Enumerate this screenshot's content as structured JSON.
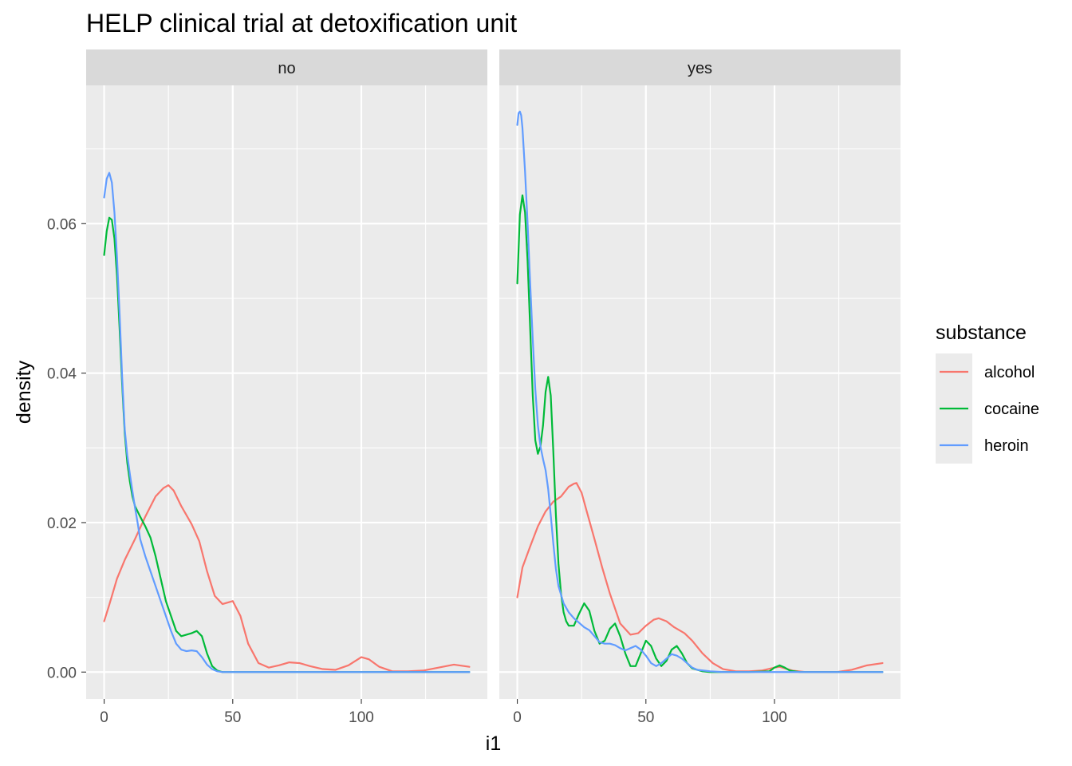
{
  "chart_data": {
    "type": "line",
    "title": "HELP clinical trial at detoxification unit",
    "xlabel": "i1",
    "ylabel": "density",
    "xlim": [
      -7,
      149
    ],
    "ylim": [
      -0.0036,
      0.0785
    ],
    "x_ticks": [
      0,
      50,
      100
    ],
    "x_tick_labels": [
      "0",
      "50",
      "100"
    ],
    "y_ticks": [
      0.0,
      0.02,
      0.04,
      0.06
    ],
    "y_tick_labels": [
      "0.00",
      "0.02",
      "0.04",
      "0.06"
    ],
    "grid": true,
    "legend": {
      "title": "substance",
      "placement": "right",
      "entries": [
        "alcohol",
        "cocaine",
        "heroin"
      ]
    },
    "colors": {
      "alcohol": "#F8766D",
      "cocaine": "#00BA38",
      "heroin": "#619CFF",
      "panel_bg": "#EBEBEB",
      "strip_bg": "#D9D9D9",
      "grid": "#FFFFFF"
    },
    "facets": [
      {
        "label": "no",
        "series": [
          {
            "name": "alcohol",
            "x": [
              0,
              2,
              5,
              8,
              12,
              16,
              20,
              23,
              25,
              27,
              30,
              34,
              37,
              40,
              43,
              46,
              50,
              53,
              56,
              60,
              64,
              68,
              72,
              76,
              80,
              85,
              90,
              95,
              100,
              103,
              107,
              112,
              118,
              124,
              130,
              136,
              142
            ],
            "y": [
              0.0068,
              0.009,
              0.0125,
              0.015,
              0.0178,
              0.0208,
              0.0235,
              0.0246,
              0.025,
              0.0243,
              0.0222,
              0.0198,
              0.0175,
              0.0135,
              0.0102,
              0.0091,
              0.0095,
              0.0075,
              0.0038,
              0.0012,
              0.0006,
              0.0009,
              0.0013,
              0.0012,
              0.0008,
              0.0004,
              0.0003,
              0.0009,
              0.002,
              0.0017,
              0.0007,
              0.0001,
              0.0001,
              0.0002,
              0.0006,
              0.001,
              0.0007
            ]
          },
          {
            "name": "cocaine",
            "x": [
              0,
              1,
              2,
              3,
              4,
              5,
              6,
              7,
              8,
              9,
              10,
              11,
              12,
              14,
              16,
              18,
              20,
              22,
              24,
              26,
              28,
              30,
              32,
              34,
              36,
              38,
              40,
              42,
              44,
              46,
              48,
              50,
              60,
              80,
              100,
              120,
              142
            ],
            "y": [
              0.0558,
              0.059,
              0.0608,
              0.0605,
              0.058,
              0.053,
              0.046,
              0.0385,
              0.032,
              0.028,
              0.0255,
              0.0235,
              0.0222,
              0.0208,
              0.0195,
              0.018,
              0.0155,
              0.0125,
              0.0095,
              0.0075,
              0.0055,
              0.0048,
              0.005,
              0.0052,
              0.0055,
              0.0048,
              0.0025,
              0.0008,
              0.0002,
              0.0,
              0.0,
              0.0,
              0.0,
              0.0,
              0.0,
              0.0,
              0.0
            ]
          },
          {
            "name": "heroin",
            "x": [
              0,
              1,
              2,
              3,
              4,
              5,
              6,
              7,
              8,
              9,
              10,
              11,
              12,
              13,
              14,
              16,
              18,
              20,
              22,
              24,
              26,
              28,
              30,
              32,
              34,
              36,
              38,
              40,
              42,
              44,
              46,
              50,
              60,
              80,
              100,
              120,
              142
            ],
            "y": [
              0.0635,
              0.066,
              0.0668,
              0.0655,
              0.0615,
              0.0555,
              0.048,
              0.0395,
              0.0325,
              0.029,
              0.0265,
              0.0242,
              0.022,
              0.02,
              0.0178,
              0.0155,
              0.0135,
              0.0115,
              0.0095,
              0.0075,
              0.0055,
              0.0038,
              0.003,
              0.0028,
              0.0029,
              0.0028,
              0.002,
              0.001,
              0.0004,
              0.0001,
              0.0,
              0.0,
              0.0,
              0.0,
              0.0,
              0.0,
              0.0
            ]
          }
        ]
      },
      {
        "label": "yes",
        "series": [
          {
            "name": "alcohol",
            "x": [
              0,
              2,
              5,
              8,
              11,
              14,
              17,
              20,
              22,
              23,
              25,
              27,
              30,
              33,
              36,
              40,
              44,
              47,
              50,
              53,
              55,
              58,
              61,
              65,
              68,
              72,
              76,
              80,
              85,
              90,
              95,
              100,
              102,
              104,
              107,
              112,
              118,
              124,
              130,
              136,
              142
            ],
            "y": [
              0.01,
              0.014,
              0.0168,
              0.0195,
              0.0215,
              0.0228,
              0.0235,
              0.0248,
              0.0252,
              0.0253,
              0.024,
              0.0215,
              0.0178,
              0.014,
              0.0105,
              0.0065,
              0.005,
              0.0052,
              0.0062,
              0.007,
              0.0072,
              0.0068,
              0.006,
              0.0052,
              0.0042,
              0.0025,
              0.0012,
              0.0004,
              0.0001,
              0.0001,
              0.0002,
              0.0006,
              0.0007,
              0.0005,
              0.0002,
              0.0,
              0.0,
              0.0,
              0.0003,
              0.0009,
              0.0012
            ]
          },
          {
            "name": "cocaine",
            "x": [
              0,
              1,
              2,
              3,
              4,
              5,
              6,
              7,
              8,
              9,
              10,
              11,
              12,
              13,
              14,
              15,
              16,
              17,
              18,
              19,
              20,
              22,
              24,
              26,
              28,
              30,
              32,
              34,
              36,
              38,
              40,
              42,
              44,
              46,
              48,
              50,
              52,
              54,
              56,
              58,
              60,
              62,
              64,
              66,
              68,
              70,
              72,
              75,
              80,
              90,
              98,
              100,
              102,
              104,
              106,
              110,
              120,
              130,
              142
            ],
            "y": [
              0.052,
              0.0612,
              0.0638,
              0.0615,
              0.055,
              0.046,
              0.037,
              0.031,
              0.0292,
              0.0302,
              0.033,
              0.0375,
              0.0395,
              0.037,
              0.0295,
              0.021,
              0.0145,
              0.0105,
              0.008,
              0.0068,
              0.0062,
              0.0062,
              0.0078,
              0.0092,
              0.0082,
              0.0055,
              0.0038,
              0.0042,
              0.0058,
              0.0065,
              0.0048,
              0.0025,
              0.0008,
              0.0008,
              0.0025,
              0.0042,
              0.0035,
              0.0018,
              0.0008,
              0.0015,
              0.003,
              0.0035,
              0.0025,
              0.0012,
              0.0005,
              0.0003,
              0.0001,
              0.0,
              0.0,
              0.0,
              0.0001,
              0.0006,
              0.0009,
              0.0006,
              0.0002,
              0.0,
              0.0,
              0.0,
              0.0
            ]
          },
          {
            "name": "heroin",
            "x": [
              0,
              0.5,
              1,
              1.5,
              2,
              3,
              4,
              5,
              6,
              7,
              8,
              9,
              10,
              11,
              12,
              13,
              14,
              15,
              16,
              18,
              20,
              22,
              24,
              26,
              28,
              30,
              32,
              34,
              36,
              38,
              40,
              42,
              44,
              46,
              48,
              50,
              52,
              54,
              56,
              58,
              60,
              62,
              64,
              66,
              68,
              70,
              75,
              80,
              100,
              120,
              142
            ],
            "y": [
              0.0732,
              0.0748,
              0.075,
              0.0745,
              0.0728,
              0.067,
              0.06,
              0.052,
              0.0445,
              0.0378,
              0.033,
              0.0302,
              0.0285,
              0.027,
              0.0245,
              0.021,
              0.0172,
              0.0138,
              0.0115,
              0.0092,
              0.008,
              0.0072,
              0.0066,
              0.006,
              0.0056,
              0.0048,
              0.004,
              0.0038,
              0.0038,
              0.0036,
              0.0032,
              0.0029,
              0.0032,
              0.0035,
              0.003,
              0.0022,
              0.0012,
              0.0008,
              0.0012,
              0.0018,
              0.0024,
              0.0022,
              0.0018,
              0.0012,
              0.0006,
              0.0003,
              0.0001,
              0.0,
              0.0,
              0.0,
              0.0
            ]
          }
        ]
      }
    ]
  }
}
